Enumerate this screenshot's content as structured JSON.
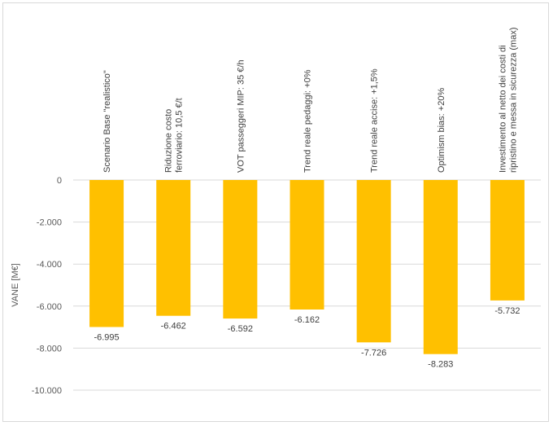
{
  "chart_data": {
    "type": "bar",
    "ylabel": "VANE [M€]",
    "ylim": [
      -10000,
      0
    ],
    "yticks": [
      0,
      -2000,
      -4000,
      -6000,
      -8000,
      -10000
    ],
    "ytick_labels": [
      "0",
      "-2.000",
      "-4.000",
      "-6.000",
      "-8.000",
      "-10.000"
    ],
    "grid": true,
    "bar_color": "#ffc000",
    "categories": [
      [
        "Scenario Base \"realistico\""
      ],
      [
        "Riduzione costo",
        "ferroviario: 10,5 €/t"
      ],
      [
        "VOT passeggeri MIP: 35 €/h"
      ],
      [
        "Trend reale pedaggi: +0%"
      ],
      [
        "Trend reale accise: +1,5%"
      ],
      [
        "Optimism bias: +20%"
      ],
      [
        "Investimento al netto dei costi di",
        "ripristino e messa in sicurezza (max)"
      ]
    ],
    "values": [
      -6995,
      -6462,
      -6592,
      -6162,
      -7726,
      -8283,
      -5732
    ],
    "data_labels": [
      "-6.995",
      "-6.462",
      "-6.592",
      "-6.162",
      "-7.726",
      "-8.283",
      "-5.732"
    ]
  }
}
